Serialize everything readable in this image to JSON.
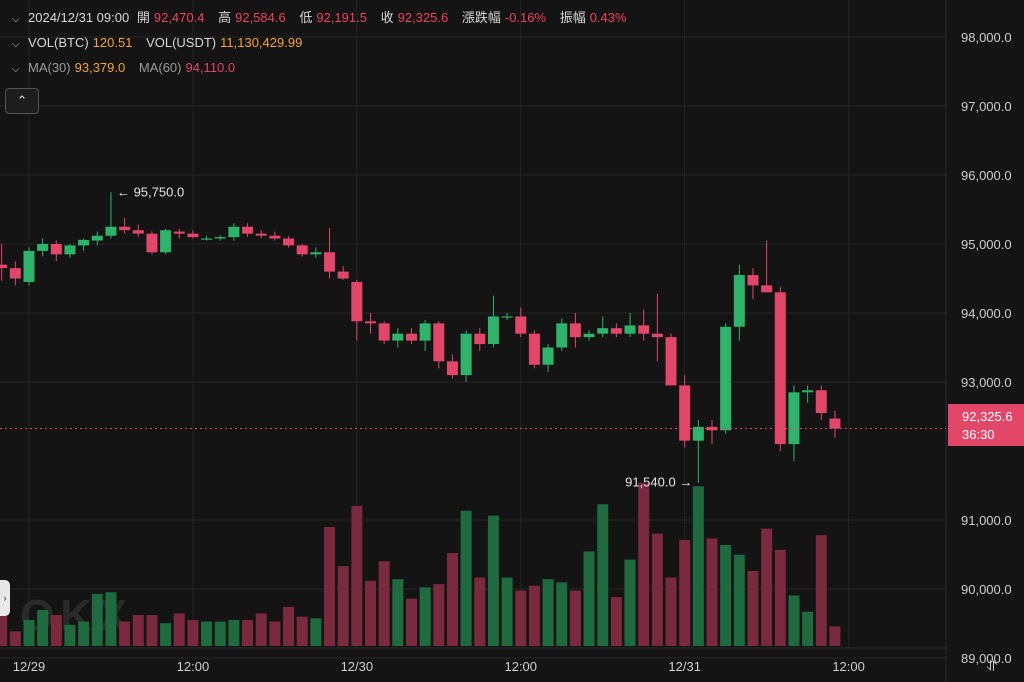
{
  "legend": {
    "row1": {
      "time": "2024/12/31 09:00",
      "open_label": "開",
      "open": "92,470.4",
      "high_label": "高",
      "high": "92,584.6",
      "low_label": "低",
      "low": "92,191.5",
      "close_label": "收",
      "close": "92,325.6",
      "change_label": "漲跌幅",
      "change": "-0.16%",
      "amp_label": "振幅",
      "amp": "0.43%"
    },
    "row2": {
      "vol_btc_label": "VOL(BTC)",
      "vol_btc": "120.51",
      "vol_usdt_label": "VOL(USDT)",
      "vol_usdt": "11,130,429.99"
    },
    "row3": {
      "ma30_label": "MA(30)",
      "ma30": "93,379.0",
      "ma60_label": "MA(60)",
      "ma60": "94,110.0"
    }
  },
  "collapse_icon": "chevron-up-icon",
  "side_handle_icon": "chevron-right-icon",
  "axis_reset_icon": "fit-axis-icon",
  "watermark": "OKX",
  "current_price_tag": {
    "price": "92,325.6",
    "countdown": "36:30"
  },
  "colors": {
    "up": "#2fb36b",
    "down": "#e2476a",
    "up_vol": "#1f6b3f",
    "down_vol": "#7a2a3f",
    "background": "#141414"
  },
  "chart_data": {
    "type": "candlestick",
    "interval_hours": 1,
    "y_ticks": [
      98000,
      97000,
      96000,
      95000,
      94000,
      93000,
      91000,
      90000,
      89000
    ],
    "y_tick_labels": [
      "98,000.0",
      "97,000.0",
      "96,000.0",
      "95,000.0",
      "94,000.0",
      "93,000.0",
      "91,000.0",
      "90,000.0",
      "89,000.0"
    ],
    "ylim": [
      88950,
      98500
    ],
    "x_tick_labels": [
      "12/29",
      "12:00",
      "12/30",
      "12:00",
      "12/31",
      "12:00"
    ],
    "x_ticks_hourly_index": [
      0,
      12,
      24,
      36,
      48,
      60
    ],
    "first_candle_hour": -2,
    "candles": [
      [
        94700,
        95000,
        94470,
        94650
      ],
      [
        94650,
        94750,
        94400,
        94500
      ],
      [
        94450,
        94950,
        94400,
        94900
      ],
      [
        94900,
        95080,
        94820,
        95000
      ],
      [
        95000,
        95050,
        94750,
        94850
      ],
      [
        94850,
        95000,
        94800,
        94980
      ],
      [
        94980,
        95080,
        94900,
        95060
      ],
      [
        95050,
        95180,
        94980,
        95120
      ],
      [
        95120,
        95750,
        95080,
        95250
      ],
      [
        95250,
        95380,
        95150,
        95200
      ],
      [
        95200,
        95280,
        95100,
        95150
      ],
      [
        95150,
        95180,
        94850,
        94880
      ],
      [
        94880,
        95220,
        94850,
        95200
      ],
      [
        95180,
        95220,
        95080,
        95150
      ],
      [
        95150,
        95200,
        95080,
        95100
      ],
      [
        95080,
        95120,
        95050,
        95080
      ],
      [
        95080,
        95130,
        95050,
        95100
      ],
      [
        95100,
        95300,
        95050,
        95250
      ],
      [
        95250,
        95300,
        95100,
        95150
      ],
      [
        95150,
        95200,
        95080,
        95120
      ],
      [
        95120,
        95180,
        95050,
        95080
      ],
      [
        95080,
        95120,
        94950,
        94980
      ],
      [
        94980,
        95000,
        94820,
        94850
      ],
      [
        94850,
        94950,
        94800,
        94880
      ],
      [
        94880,
        95230,
        94500,
        94600
      ],
      [
        94600,
        94680,
        94480,
        94500
      ],
      [
        94450,
        94480,
        93600,
        93880
      ],
      [
        93880,
        94000,
        93700,
        93850
      ],
      [
        93850,
        93880,
        93550,
        93600
      ],
      [
        93600,
        93780,
        93500,
        93700
      ],
      [
        93700,
        93780,
        93550,
        93600
      ],
      [
        93600,
        93900,
        93450,
        93850
      ],
      [
        93850,
        93880,
        93200,
        93300
      ],
      [
        93300,
        93400,
        93050,
        93100
      ],
      [
        93100,
        93750,
        93000,
        93700
      ],
      [
        93700,
        93780,
        93450,
        93550
      ],
      [
        93550,
        94250,
        93500,
        93950
      ],
      [
        93950,
        94000,
        93900,
        93950
      ],
      [
        93950,
        94080,
        93650,
        93700
      ],
      [
        93700,
        93750,
        93200,
        93250
      ],
      [
        93250,
        93550,
        93150,
        93500
      ],
      [
        93500,
        93920,
        93450,
        93850
      ],
      [
        93850,
        94000,
        93500,
        93650
      ],
      [
        93650,
        93750,
        93600,
        93700
      ],
      [
        93700,
        93950,
        93650,
        93780
      ],
      [
        93780,
        93850,
        93650,
        93700
      ],
      [
        93700,
        94000,
        93650,
        93820
      ],
      [
        93820,
        94050,
        93600,
        93700
      ],
      [
        93700,
        94280,
        93300,
        93650
      ],
      [
        93650,
        93700,
        93000,
        92950
      ],
      [
        92950,
        93100,
        92050,
        92150
      ],
      [
        92150,
        92450,
        91540,
        92350
      ],
      [
        92350,
        92450,
        92100,
        92300
      ],
      [
        92300,
        93850,
        92250,
        93800
      ],
      [
        93800,
        94700,
        93600,
        94550
      ],
      [
        94550,
        94650,
        94200,
        94400
      ],
      [
        94400,
        95050,
        94300,
        94300
      ],
      [
        94300,
        94380,
        92000,
        92100
      ],
      [
        92100,
        92950,
        91850,
        92850
      ],
      [
        92850,
        92950,
        92700,
        92880
      ],
      [
        92880,
        92950,
        92450,
        92550
      ],
      [
        92470,
        92584,
        92191,
        92325
      ]
    ],
    "volume_bars_relative": [
      0.34,
      0.09,
      0.16,
      0.22,
      0.19,
      0.13,
      0.15,
      0.32,
      0.33,
      0.15,
      0.19,
      0.19,
      0.14,
      0.2,
      0.16,
      0.15,
      0.15,
      0.16,
      0.16,
      0.2,
      0.15,
      0.24,
      0.18,
      0.17,
      0.73,
      0.49,
      0.86,
      0.4,
      0.52,
      0.41,
      0.29,
      0.36,
      0.38,
      0.57,
      0.83,
      0.42,
      0.8,
      0.42,
      0.34,
      0.37,
      0.41,
      0.39,
      0.34,
      0.58,
      0.87,
      0.3,
      0.53,
      1.0,
      0.69,
      0.42,
      0.65,
      0.98,
      0.66,
      0.62,
      0.56,
      0.46,
      0.72,
      0.59,
      0.31,
      0.21,
      0.68,
      0.12
    ],
    "annotations": [
      {
        "text": "95,750.0",
        "price": 95750,
        "candle_index": 8,
        "side": "right"
      },
      {
        "text": "91,540.0",
        "price": 91540,
        "candle_index": 51,
        "side": "left"
      }
    ],
    "current_price": 92325.6
  }
}
